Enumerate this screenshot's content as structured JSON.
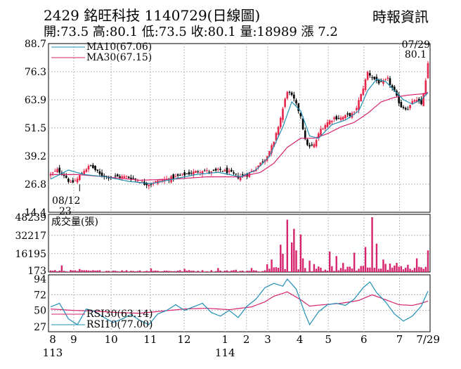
{
  "header": {
    "title": "2429  銘旺科技 1140729(日線圖)",
    "ohlc": "開:73.5 高:80.1 低:73.5 收:80.1 量:18989 漲 7.2",
    "source": "時報資訊"
  },
  "colors": {
    "up": "#e8254a",
    "down": "#000000",
    "ma10": "#1f8fb5",
    "ma30": "#d6246e",
    "volume": "#d6246e",
    "rsi30": "#d6246e",
    "rsi10": "#1f8fb5",
    "grid": "#b8b8b8"
  },
  "chart_data": [
    {
      "type": "candlestick",
      "ylim": [
        14.4,
        88.7
      ],
      "yticks": [
        "88.7",
        "76.3",
        "63.9",
        "51.5",
        "39.2",
        "26.8",
        "14.4"
      ],
      "legend": [
        {
          "name": "MA10(67.06)",
          "color": "#1f8fb5"
        },
        {
          "name": "MA30(67.15)",
          "color": "#d6246e"
        }
      ],
      "annotations": {
        "low_date": "08/12",
        "low_value": "23",
        "last_date": "07/29",
        "last_value": "80.1"
      },
      "close_anchors": [
        [
          0,
          31
        ],
        [
          3,
          33
        ],
        [
          6,
          31
        ],
        [
          9,
          27
        ],
        [
          12,
          29
        ],
        [
          15,
          33
        ],
        [
          18,
          35
        ],
        [
          22,
          31
        ],
        [
          26,
          30
        ],
        [
          30,
          30
        ],
        [
          34,
          30
        ],
        [
          38,
          29
        ],
        [
          42,
          27
        ],
        [
          45,
          27
        ],
        [
          48,
          28
        ],
        [
          52,
          29
        ],
        [
          56,
          30
        ],
        [
          60,
          31
        ],
        [
          64,
          32
        ],
        [
          68,
          33
        ],
        [
          72,
          32
        ],
        [
          76,
          33
        ],
        [
          80,
          32
        ],
        [
          84,
          30
        ],
        [
          88,
          31
        ],
        [
          92,
          34
        ],
        [
          96,
          38
        ],
        [
          100,
          45
        ],
        [
          103,
          56
        ],
        [
          106,
          68
        ],
        [
          109,
          64
        ],
        [
          112,
          57
        ],
        [
          114,
          46
        ],
        [
          116,
          43
        ],
        [
          118,
          44
        ],
        [
          121,
          51
        ],
        [
          124,
          54
        ],
        [
          127,
          56
        ],
        [
          130,
          56
        ],
        [
          133,
          57
        ],
        [
          136,
          58
        ],
        [
          139,
          66
        ],
        [
          142,
          76
        ],
        [
          145,
          73
        ],
        [
          148,
          71
        ],
        [
          151,
          73
        ],
        [
          154,
          67
        ],
        [
          157,
          61
        ],
        [
          160,
          60
        ],
        [
          163,
          64
        ],
        [
          166,
          62
        ],
        [
          168,
          72
        ],
        [
          169,
          80.1
        ]
      ],
      "ma10_anchors": [
        [
          0,
          29
        ],
        [
          8,
          33
        ],
        [
          15,
          31
        ],
        [
          25,
          30
        ],
        [
          35,
          28
        ],
        [
          45,
          27
        ],
        [
          55,
          29
        ],
        [
          65,
          31
        ],
        [
          75,
          32
        ],
        [
          85,
          30
        ],
        [
          92,
          33
        ],
        [
          98,
          39
        ],
        [
          104,
          52
        ],
        [
          108,
          63
        ],
        [
          112,
          59
        ],
        [
          116,
          48
        ],
        [
          120,
          47
        ],
        [
          126,
          53
        ],
        [
          132,
          55
        ],
        [
          138,
          59
        ],
        [
          142,
          68
        ],
        [
          146,
          73
        ],
        [
          150,
          72
        ],
        [
          154,
          68
        ],
        [
          158,
          64
        ],
        [
          162,
          62
        ],
        [
          166,
          64
        ],
        [
          169,
          67.06
        ]
      ],
      "ma30_anchors": [
        [
          0,
          31
        ],
        [
          12,
          31
        ],
        [
          25,
          30
        ],
        [
          40,
          28.5
        ],
        [
          55,
          29
        ],
        [
          70,
          30
        ],
        [
          85,
          30
        ],
        [
          94,
          32
        ],
        [
          100,
          36
        ],
        [
          106,
          43
        ],
        [
          112,
          47
        ],
        [
          118,
          47
        ],
        [
          124,
          49
        ],
        [
          130,
          52
        ],
        [
          136,
          54
        ],
        [
          142,
          58
        ],
        [
          148,
          63
        ],
        [
          154,
          65
        ],
        [
          160,
          66
        ],
        [
          166,
          66.5
        ],
        [
          169,
          67.15
        ]
      ]
    },
    {
      "type": "bar",
      "title": "成交量(張)",
      "ylim": [
        0,
        48239
      ],
      "yticks": [
        "48239",
        "32217",
        "16195",
        "173"
      ],
      "spikes": [
        [
          5,
          5800
        ],
        [
          13,
          2600
        ],
        [
          28,
          1200
        ],
        [
          45,
          3200
        ],
        [
          60,
          2800
        ],
        [
          75,
          3500
        ],
        [
          83,
          2000
        ],
        [
          90,
          3500
        ],
        [
          97,
          6800
        ],
        [
          99,
          11000
        ],
        [
          103,
          24000
        ],
        [
          104,
          16000
        ],
        [
          106,
          46000
        ],
        [
          108,
          26000
        ],
        [
          109,
          38000
        ],
        [
          110,
          19000
        ],
        [
          112,
          33000
        ],
        [
          113,
          12000
        ],
        [
          116,
          10000
        ],
        [
          118,
          7000
        ],
        [
          125,
          18000
        ],
        [
          128,
          14000
        ],
        [
          131,
          8000
        ],
        [
          136,
          17000
        ],
        [
          141,
          22000
        ],
        [
          144,
          48239
        ],
        [
          146,
          25000
        ],
        [
          149,
          11000
        ],
        [
          155,
          8000
        ],
        [
          164,
          12000
        ],
        [
          169,
          18989
        ]
      ]
    },
    {
      "type": "line",
      "yticks": [
        "94",
        "72",
        "50",
        "27"
      ],
      "ylim": [
        20,
        100
      ],
      "legend": [
        {
          "name": "RSI30(63.14)",
          "color": "#d6246e"
        },
        {
          "name": "RSI10(77.00)",
          "color": "#1f8fb5"
        }
      ],
      "rsi10_anchors": [
        [
          0,
          55
        ],
        [
          4,
          60
        ],
        [
          8,
          38
        ],
        [
          12,
          30
        ],
        [
          16,
          52
        ],
        [
          20,
          48
        ],
        [
          24,
          40
        ],
        [
          28,
          33
        ],
        [
          32,
          38
        ],
        [
          36,
          44
        ],
        [
          40,
          36
        ],
        [
          44,
          30
        ],
        [
          48,
          45
        ],
        [
          52,
          50
        ],
        [
          56,
          58
        ],
        [
          60,
          50
        ],
        [
          64,
          55
        ],
        [
          68,
          60
        ],
        [
          72,
          47
        ],
        [
          76,
          42
        ],
        [
          80,
          50
        ],
        [
          84,
          40
        ],
        [
          88,
          56
        ],
        [
          92,
          66
        ],
        [
          96,
          82
        ],
        [
          100,
          88
        ],
        [
          104,
          84
        ],
        [
          106,
          94
        ],
        [
          110,
          80
        ],
        [
          114,
          45
        ],
        [
          116,
          30
        ],
        [
          120,
          48
        ],
        [
          124,
          58
        ],
        [
          128,
          60
        ],
        [
          132,
          57
        ],
        [
          136,
          66
        ],
        [
          140,
          82
        ],
        [
          143,
          90
        ],
        [
          146,
          75
        ],
        [
          150,
          62
        ],
        [
          154,
          45
        ],
        [
          158,
          35
        ],
        [
          162,
          42
        ],
        [
          166,
          56
        ],
        [
          169,
          77
        ]
      ],
      "rsi30_anchors": [
        [
          0,
          52
        ],
        [
          10,
          50
        ],
        [
          20,
          49
        ],
        [
          30,
          47
        ],
        [
          40,
          46
        ],
        [
          50,
          49
        ],
        [
          60,
          52
        ],
        [
          70,
          53
        ],
        [
          80,
          51
        ],
        [
          90,
          55
        ],
        [
          96,
          62
        ],
        [
          100,
          70
        ],
        [
          106,
          76
        ],
        [
          112,
          65
        ],
        [
          116,
          56
        ],
        [
          122,
          58
        ],
        [
          130,
          60
        ],
        [
          138,
          64
        ],
        [
          144,
          72
        ],
        [
          150,
          65
        ],
        [
          156,
          58
        ],
        [
          162,
          57
        ],
        [
          166,
          60
        ],
        [
          169,
          63.14
        ]
      ]
    }
  ],
  "xaxis": {
    "months": [
      {
        "label": "8",
        "day": 0
      },
      {
        "label": "9",
        "day": 13
      },
      {
        "label": "10",
        "day": 34
      },
      {
        "label": "11",
        "day": 56
      },
      {
        "label": "12",
        "day": 75
      },
      {
        "label": "1",
        "day": 98
      },
      {
        "label": "2",
        "day": 110
      },
      {
        "label": "3",
        "day": 122
      },
      {
        "label": "4",
        "day": 140
      },
      {
        "label": "5",
        "day": 156
      },
      {
        "label": "6",
        "day": 176
      },
      {
        "label": "7",
        "day": 196
      },
      {
        "label": "7/29",
        "day": 212
      }
    ],
    "years": [
      {
        "label": "113",
        "day": 0
      },
      {
        "label": "114",
        "day": 98
      }
    ]
  }
}
